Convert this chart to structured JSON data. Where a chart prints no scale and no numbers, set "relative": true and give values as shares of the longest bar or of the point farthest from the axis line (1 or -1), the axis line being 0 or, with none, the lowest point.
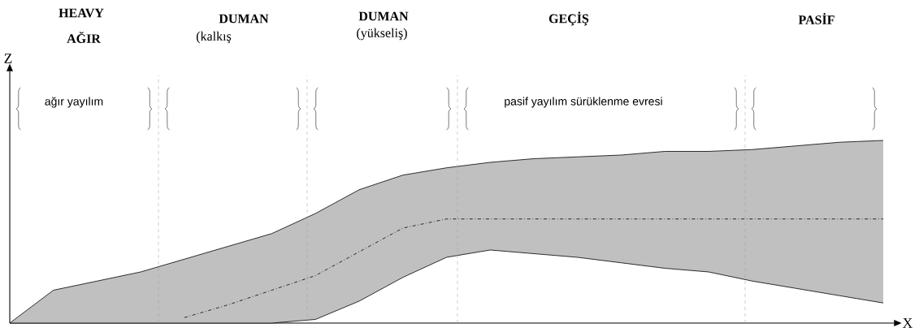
{
  "chart_data": {
    "type": "line",
    "relative": true,
    "xlabel": "X",
    "categories": [
      null,
      null,
      null,
      null,
      null,
      null,
      null,
      null,
      null,
      null,
      null,
      null,
      null,
      null,
      null,
      null,
      null,
      null,
      null,
      null,
      null
    ],
    "series": [
      {
        "color": "#000000",
        "line_style": "solid",
        "values": [
          0,
          0.18,
          0.23,
          0.28,
          0.35,
          0.42,
          0.49,
          0.6,
          0.73,
          0.81,
          0.85,
          0.88,
          0.9,
          0.91,
          0.92,
          0.94,
          0.94,
          0.95,
          0.97,
          0.99,
          1
        ]
      },
      {
        "color": "#000000",
        "line_style": "solid",
        "values": [
          0,
          0,
          0,
          0,
          0,
          0,
          0,
          0.02,
          0.12,
          0.25,
          0.36,
          0.4,
          0.38,
          0.36,
          0.33,
          0.3,
          0.28,
          0.23,
          0.19,
          0.15,
          0.11
        ]
      },
      {
        "color": "#000000",
        "line_style": "dashdot",
        "values": [
          null,
          null,
          null,
          null,
          0.03,
          0.1,
          0.18,
          0.26,
          0.39,
          0.52,
          0.57,
          0.57,
          0.57,
          0.57,
          0.57,
          0.57,
          0.57,
          0.57,
          0.57,
          0.57,
          0.57
        ],
        "lower": [
          0,
          0,
          0,
          0,
          0,
          0,
          0,
          0.02,
          0.12,
          0.25,
          0.36,
          0.4,
          0.38,
          0.36,
          0.33,
          0.3,
          0.28,
          0.23,
          0.19,
          0.15,
          0.11
        ],
        "upper": [
          0,
          0.18,
          0.23,
          0.28,
          0.35,
          0.42,
          0.49,
          0.6,
          0.73,
          0.81,
          0.85,
          0.88,
          0.9,
          0.91,
          0.92,
          0.94,
          0.94,
          0.95,
          0.97,
          0.99,
          1
        ]
      }
    ],
    "annotations": [
      "Z",
      "HEAVY",
      "AĞIR",
      "DUMAN",
      "(kalkış",
      "DUMAN",
      "(yükseliş)",
      "GEÇİŞ",
      "PASİF",
      "ağır yayılım",
      "pasif yayılım sürüklenme evresi"
    ]
  }
}
